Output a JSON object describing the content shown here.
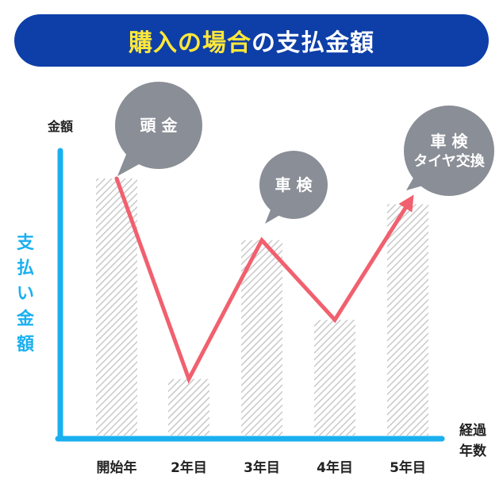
{
  "title": {
    "highlight": "購入の場合",
    "rest": "の支払金額",
    "highlight_color": "#ffe83a",
    "background_color": "#0e3fa8"
  },
  "chart_data": {
    "type": "bar",
    "categories": [
      "開始年",
      "2年目",
      "3年目",
      "4年目",
      "5年目"
    ],
    "values": [
      100,
      22,
      76,
      45,
      90
    ],
    "ylim": [
      0,
      100
    ],
    "line_overlay": true,
    "ylabel_top": "金額",
    "ylabel_side": "支払い金額",
    "xlabel": [
      "経過",
      "年数"
    ],
    "axis_color": "#1ab0f0",
    "line_color": "#f1606e",
    "bar_pattern": "diagonal-hatch-gray",
    "annotations": [
      {
        "category_index": 0,
        "lines": [
          "頭 金"
        ]
      },
      {
        "category_index": 2,
        "lines": [
          "車 検"
        ]
      },
      {
        "category_index": 4,
        "lines": [
          "車 検",
          "タイヤ交換"
        ]
      }
    ]
  }
}
